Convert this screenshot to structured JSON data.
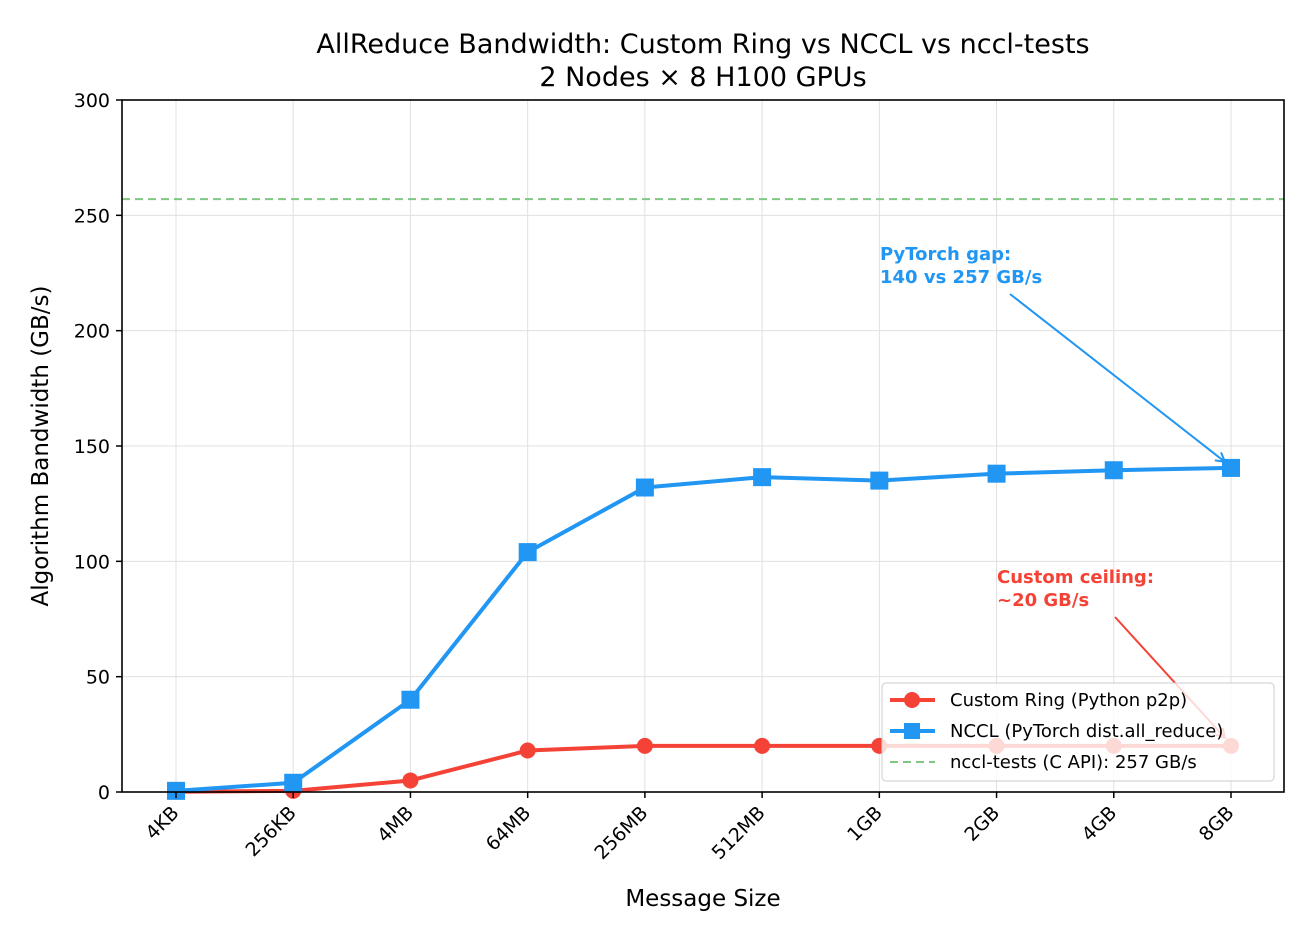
{
  "chart_data": {
    "type": "line",
    "title": "AllReduce Bandwidth: Custom Ring vs NCCL vs nccl-tests",
    "subtitle": "2 Nodes × 8 H100 GPUs",
    "xlabel": "Message Size",
    "ylabel": "Algorithm Bandwidth (GB/s)",
    "categories": [
      "4KB",
      "256KB",
      "4MB",
      "64MB",
      "256MB",
      "512MB",
      "1GB",
      "2GB",
      "4GB",
      "8GB"
    ],
    "ylim": [
      0,
      300
    ],
    "yticks": [
      0,
      50,
      100,
      150,
      200,
      250,
      300
    ],
    "grid": true,
    "legend_position": "lower right",
    "series": [
      {
        "name": "Custom Ring (Python p2p)",
        "color": "#F44336",
        "marker": "circle",
        "values": [
          0.1,
          0.5,
          5,
          18,
          20,
          20,
          20,
          20,
          20,
          20
        ]
      },
      {
        "name": "NCCL (PyTorch dist.all_reduce)",
        "color": "#2196F3",
        "marker": "square",
        "values": [
          0.5,
          4,
          40,
          104,
          132,
          136.5,
          135,
          138,
          139.5,
          140.5
        ]
      }
    ],
    "reference_lines": [
      {
        "name": "nccl-tests (C API): 257 GB/s",
        "value": 257,
        "color": "#81C784",
        "style": "dashed"
      }
    ],
    "annotations": [
      {
        "lines": [
          "PyTorch gap:",
          "140 vs 257 GB/s"
        ],
        "color": "#2196F3",
        "points_to": "8GB NCCL"
      },
      {
        "lines": [
          "Custom ceiling:",
          "~20 GB/s"
        ],
        "color": "#F44336",
        "points_to": "8GB Custom Ring"
      }
    ]
  }
}
